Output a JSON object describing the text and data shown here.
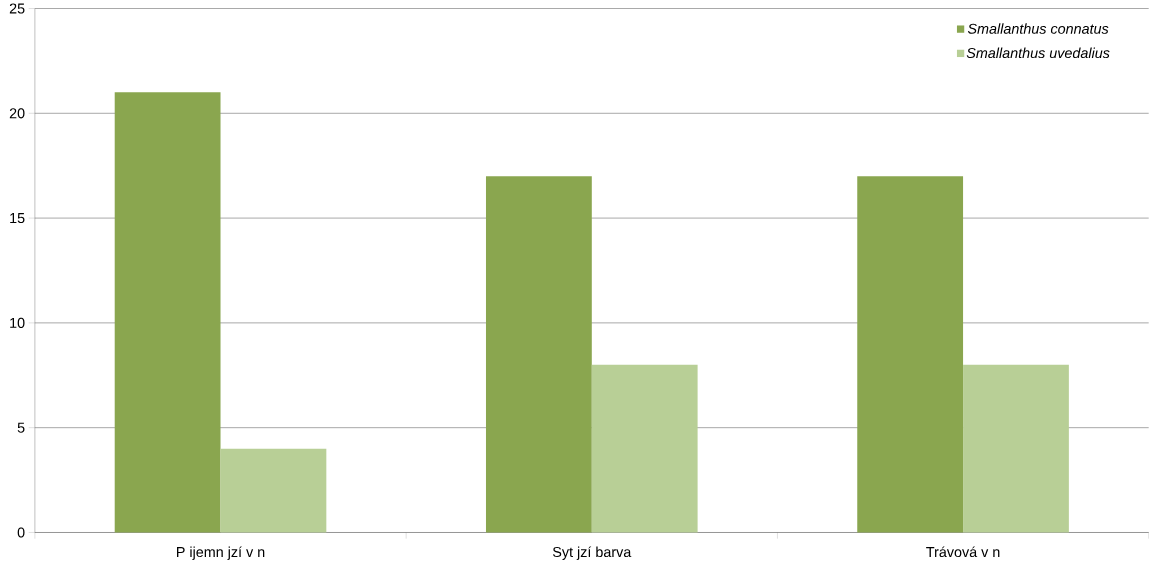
{
  "chart_data": {
    "type": "bar",
    "categories": [
      "P ijemn jzí v n",
      "Syt jzí barva",
      "Trávová v n"
    ],
    "series": [
      {
        "name": "Smallanthus connatus",
        "color": "#8aa64f",
        "values": [
          21,
          17,
          17
        ]
      },
      {
        "name": "Smallanthus uvedalius",
        "color": "#b8cf96",
        "values": [
          4,
          8,
          8
        ]
      }
    ],
    "ylim": [
      0,
      25
    ],
    "yticks": [
      0,
      5,
      10,
      15,
      20,
      25
    ],
    "grid": "y",
    "legend": "top right"
  }
}
